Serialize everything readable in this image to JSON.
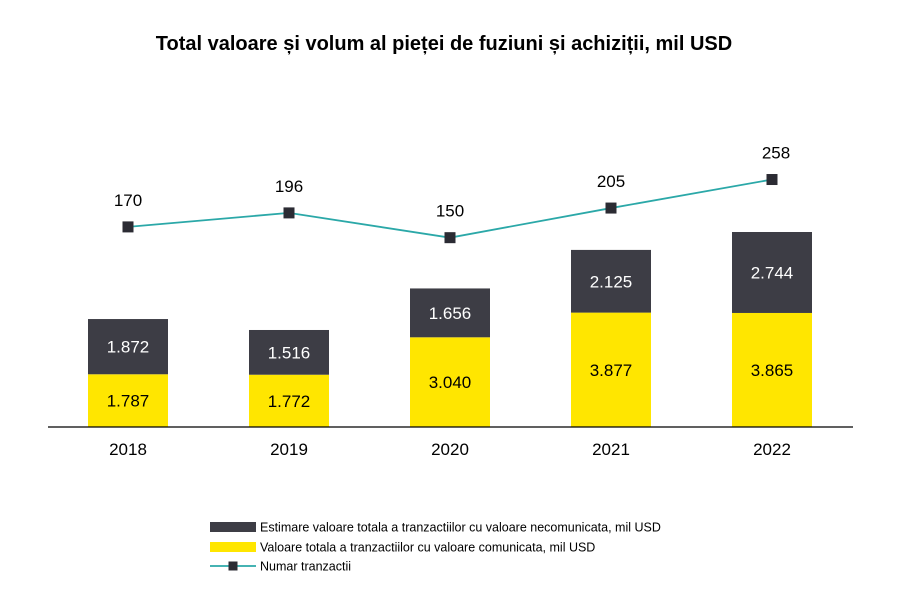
{
  "chart_data": {
    "type": "bar",
    "stacked": true,
    "title": "Total valoare și volum al pieței de fuziuni și achiziții, mil USD",
    "categories": [
      "2018",
      "2019",
      "2020",
      "2021",
      "2022"
    ],
    "series": [
      {
        "name": "Valoare totala a tranzactiilor cu valoare comunicata, mil USD",
        "type": "bar",
        "color": "#FFE600",
        "values": [
          1787,
          1772,
          3040,
          3877,
          3865
        ],
        "labels": [
          "1.787",
          "1.772",
          "3.040",
          "3.877",
          "3.865"
        ]
      },
      {
        "name": "Estimare valoare totala a tranzactiilor cu valoare necomunicata, mil USD",
        "type": "bar",
        "color": "#3D3D45",
        "values": [
          1872,
          1516,
          1656,
          2125,
          2744
        ],
        "labels": [
          "1.872",
          "1.516",
          "1.656",
          "2.125",
          "2.744"
        ]
      },
      {
        "name": "Numar tranzactii",
        "type": "line",
        "color": "#2BA8A8",
        "marker_color": "#2B2B33",
        "values": [
          170,
          196,
          150,
          205,
          258
        ],
        "labels": [
          "170",
          "196",
          "150",
          "205",
          "258"
        ]
      }
    ],
    "legend_position": "bottom",
    "grid": false
  }
}
